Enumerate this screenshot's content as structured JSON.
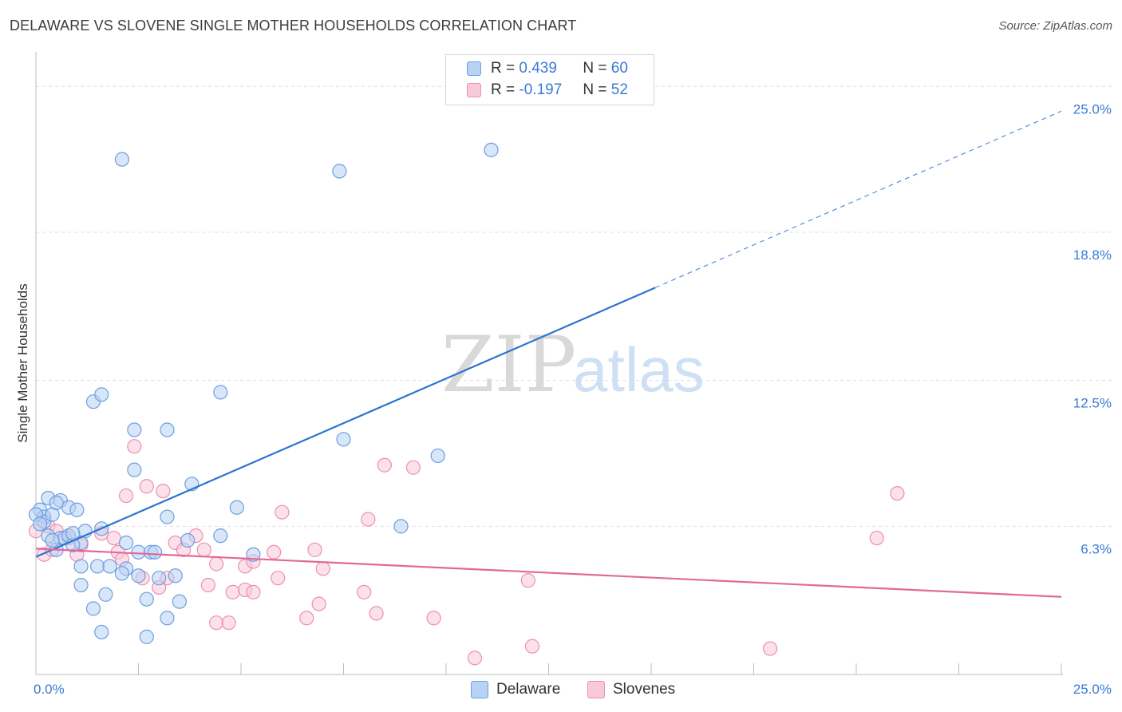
{
  "title": "DELAWARE VS SLOVENE SINGLE MOTHER HOUSEHOLDS CORRELATION CHART",
  "source": "Source: ZipAtlas.com",
  "watermark": {
    "zip": "ZIP",
    "atlas": "atlas"
  },
  "legend": {
    "rows": [
      {
        "r_label": "R =",
        "r_value": "0.439",
        "n_label": "N =",
        "n_value": "60"
      },
      {
        "r_label": "R =",
        "r_value": "-0.197",
        "n_label": "N =",
        "n_value": "52"
      }
    ]
  },
  "bottom_legend": {
    "delaware": "Delaware",
    "slovenes": "Slovenes"
  },
  "chart_data": {
    "type": "scatter",
    "title": "DELAWARE VS SLOVENE SINGLE MOTHER HOUSEHOLDS CORRELATION CHART",
    "xlabel": "",
    "ylabel": "Single Mother Households",
    "xlim": [
      0,
      25
    ],
    "ylim": [
      0,
      26.3
    ],
    "x_tick_labels": [
      "0.0%",
      "25.0%"
    ],
    "y_ticks": [
      6.3,
      12.5,
      18.8,
      25.0
    ],
    "y_tick_labels": [
      "6.3%",
      "12.5%",
      "18.8%",
      "25.0%"
    ],
    "grid": true,
    "colors": {
      "delaware": "#6d9fe0",
      "delaware_fill": "#b8d2f4",
      "slovenes": "#ee8fb0",
      "slovenes_fill": "#f9c9d9",
      "delaware_line": "#2b74cf",
      "slovenes_line": "#e0699a",
      "tick": "#3a7bd5"
    },
    "series": [
      {
        "name": "Delaware",
        "r": 0.439,
        "n": 60,
        "trend": {
          "x0": 0.0,
          "y0": 5.0,
          "x_solid_end": 15.1,
          "x_dash_end": 25.0,
          "slope": 0.758
        },
        "points": [
          [
            2.1,
            21.9
          ],
          [
            7.4,
            21.4
          ],
          [
            11.1,
            22.3
          ],
          [
            1.4,
            11.6
          ],
          [
            1.6,
            11.9
          ],
          [
            4.5,
            12.0
          ],
          [
            2.4,
            10.4
          ],
          [
            3.2,
            10.4
          ],
          [
            7.5,
            10.0
          ],
          [
            9.8,
            9.3
          ],
          [
            2.4,
            8.7
          ],
          [
            3.8,
            8.1
          ],
          [
            0.3,
            7.5
          ],
          [
            0.6,
            7.4
          ],
          [
            0.8,
            7.1
          ],
          [
            1.0,
            7.0
          ],
          [
            4.9,
            7.1
          ],
          [
            3.2,
            6.7
          ],
          [
            0.1,
            7.0
          ],
          [
            0.2,
            6.7
          ],
          [
            0.2,
            6.5
          ],
          [
            0.4,
            6.8
          ],
          [
            0.5,
            7.3
          ],
          [
            8.9,
            6.3
          ],
          [
            1.6,
            6.2
          ],
          [
            1.2,
            6.1
          ],
          [
            0.3,
            5.9
          ],
          [
            0.6,
            5.8
          ],
          [
            0.7,
            5.8
          ],
          [
            0.8,
            5.9
          ],
          [
            4.5,
            5.9
          ],
          [
            3.7,
            5.7
          ],
          [
            1.1,
            5.6
          ],
          [
            0.9,
            5.5
          ],
          [
            0.5,
            5.3
          ],
          [
            2.2,
            5.6
          ],
          [
            2.5,
            5.2
          ],
          [
            2.8,
            5.2
          ],
          [
            2.9,
            5.2
          ],
          [
            5.3,
            5.1
          ],
          [
            1.1,
            4.6
          ],
          [
            1.5,
            4.6
          ],
          [
            1.8,
            4.6
          ],
          [
            2.2,
            4.5
          ],
          [
            2.1,
            4.3
          ],
          [
            2.5,
            4.2
          ],
          [
            3.0,
            4.1
          ],
          [
            3.4,
            4.2
          ],
          [
            1.1,
            3.8
          ],
          [
            1.7,
            3.4
          ],
          [
            2.7,
            3.2
          ],
          [
            3.5,
            3.1
          ],
          [
            1.4,
            2.8
          ],
          [
            3.2,
            2.4
          ],
          [
            1.6,
            1.8
          ],
          [
            2.7,
            1.6
          ],
          [
            0.0,
            6.8
          ],
          [
            0.1,
            6.4
          ],
          [
            0.4,
            5.7
          ],
          [
            0.9,
            6.0
          ]
        ]
      },
      {
        "name": "Slovenes",
        "r": -0.197,
        "n": 52,
        "trend": {
          "x0": 0.0,
          "y0": 5.35,
          "x_end": 25.0,
          "y_end": 3.3
        },
        "points": [
          [
            0.0,
            6.1
          ],
          [
            0.2,
            6.7
          ],
          [
            0.3,
            6.3
          ],
          [
            0.5,
            6.1
          ],
          [
            0.8,
            5.8
          ],
          [
            0.2,
            5.1
          ],
          [
            0.4,
            5.3
          ],
          [
            1.0,
            5.1
          ],
          [
            1.1,
            5.5
          ],
          [
            1.6,
            6.0
          ],
          [
            1.9,
            5.8
          ],
          [
            2.0,
            5.2
          ],
          [
            2.1,
            4.9
          ],
          [
            2.2,
            7.6
          ],
          [
            2.4,
            9.7
          ],
          [
            2.7,
            8.0
          ],
          [
            3.1,
            7.8
          ],
          [
            3.4,
            5.6
          ],
          [
            3.6,
            5.3
          ],
          [
            3.9,
            5.9
          ],
          [
            4.1,
            5.3
          ],
          [
            4.4,
            4.7
          ],
          [
            5.1,
            4.6
          ],
          [
            5.3,
            4.8
          ],
          [
            5.8,
            5.2
          ],
          [
            6.0,
            6.9
          ],
          [
            6.8,
            5.3
          ],
          [
            7.0,
            4.5
          ],
          [
            8.1,
            6.6
          ],
          [
            8.5,
            8.9
          ],
          [
            9.2,
            8.8
          ],
          [
            20.5,
            5.8
          ],
          [
            21.0,
            7.7
          ],
          [
            3.2,
            4.1
          ],
          [
            2.6,
            4.1
          ],
          [
            3.0,
            3.7
          ],
          [
            4.2,
            3.8
          ],
          [
            4.8,
            3.5
          ],
          [
            5.1,
            3.6
          ],
          [
            5.3,
            3.5
          ],
          [
            5.9,
            4.1
          ],
          [
            8.0,
            3.5
          ],
          [
            6.9,
            3.0
          ],
          [
            4.4,
            2.2
          ],
          [
            4.7,
            2.2
          ],
          [
            6.6,
            2.4
          ],
          [
            8.3,
            2.6
          ],
          [
            9.7,
            2.4
          ],
          [
            12.1,
            1.2
          ],
          [
            17.9,
            1.1
          ],
          [
            10.7,
            0.7
          ],
          [
            12.0,
            4.0
          ]
        ]
      }
    ]
  }
}
